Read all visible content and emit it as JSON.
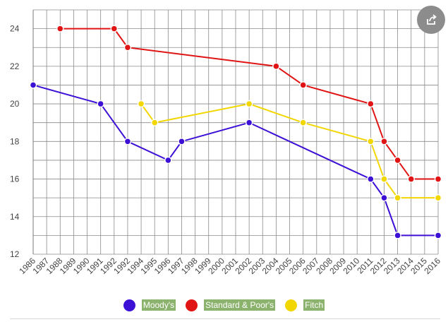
{
  "chart_data": {
    "type": "line",
    "title": "",
    "xlabel": "",
    "ylabel": "",
    "categories": [
      "1986",
      "1987",
      "1988",
      "1989",
      "1990",
      "1991",
      "1992",
      "1992",
      "1994",
      "1995",
      "1996",
      "1997",
      "1998",
      "1999",
      "2000",
      "2001",
      "2002",
      "2003",
      "2004",
      "2005",
      "2006",
      "2007",
      "2008",
      "2009",
      "2010",
      "2011",
      "2012",
      "2013",
      "2014",
      "2015",
      "2016"
    ],
    "yticks": [
      12,
      14,
      16,
      18,
      20,
      22,
      24
    ],
    "ylim": [
      12,
      25
    ],
    "grid": true,
    "legend": "bottom",
    "series": [
      {
        "name": "Moody's",
        "color": "#3d10d6",
        "points": [
          [
            0,
            21
          ],
          [
            5,
            20
          ],
          [
            7,
            18
          ],
          [
            10,
            17
          ],
          [
            11,
            18
          ],
          [
            16,
            19
          ],
          [
            25,
            16
          ],
          [
            26,
            15
          ],
          [
            27,
            13
          ],
          [
            30,
            13
          ]
        ]
      },
      {
        "name": "Standard & Poor's",
        "color": "#e01414",
        "points": [
          [
            2,
            24
          ],
          [
            6,
            24
          ],
          [
            7,
            23
          ],
          [
            18,
            22
          ],
          [
            20,
            21
          ],
          [
            25,
            20
          ],
          [
            26,
            18
          ],
          [
            27,
            17
          ],
          [
            28,
            16
          ],
          [
            30,
            16
          ]
        ]
      },
      {
        "name": "Fitch",
        "color": "#f2d600",
        "points": [
          [
            8,
            20
          ],
          [
            9,
            19
          ],
          [
            16,
            20
          ],
          [
            20,
            19
          ],
          [
            25,
            18
          ],
          [
            26,
            16
          ],
          [
            27,
            15
          ],
          [
            30,
            15
          ]
        ]
      }
    ]
  },
  "share_icon": "share-icon"
}
